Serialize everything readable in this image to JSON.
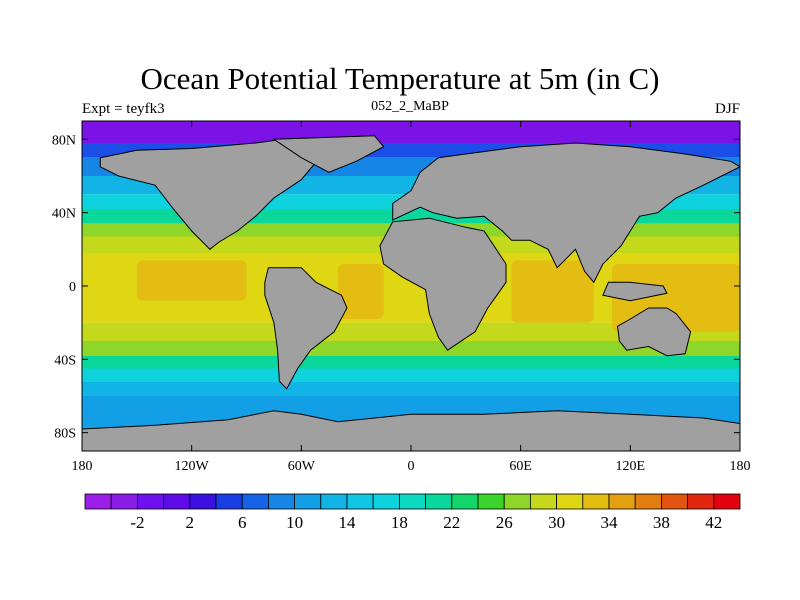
{
  "title": "Ocean Potential Temperature at 5m (in C)",
  "left_string": "Expt = teyfk3",
  "center_string": "052_2_MaBP",
  "right_string": "DJF",
  "lon_ticks": [
    {
      "lon": -180,
      "label": "180"
    },
    {
      "lon": -120,
      "label": "120W"
    },
    {
      "lon": -60,
      "label": "60W"
    },
    {
      "lon": 0,
      "label": "0"
    },
    {
      "lon": 60,
      "label": "60E"
    },
    {
      "lon": 120,
      "label": "120E"
    },
    {
      "lon": 180,
      "label": "180"
    }
  ],
  "lat_ticks": [
    {
      "lat": 80,
      "label": "80N"
    },
    {
      "lat": 40,
      "label": "40N"
    },
    {
      "lat": 0,
      "label": "0"
    },
    {
      "lat": -40,
      "label": "40S"
    },
    {
      "lat": -80,
      "label": "80S"
    }
  ],
  "map_extent": {
    "lon": [
      -180,
      180
    ],
    "lat": [
      -90,
      90
    ]
  },
  "colorbar": {
    "levels": [
      -4,
      -2,
      0,
      2,
      4,
      6,
      8,
      10,
      12,
      14,
      16,
      18,
      20,
      22,
      24,
      26,
      28,
      30,
      32,
      34,
      36,
      38,
      40,
      42
    ],
    "labels": [
      "-2",
      "2",
      "6",
      "10",
      "14",
      "18",
      "22",
      "26",
      "30",
      "34",
      "38",
      "42"
    ],
    "colors": [
      "#9d1ee8",
      "#8a1ee8",
      "#6f10ef",
      "#5e0be8",
      "#3b0fe0",
      "#1a3ee6",
      "#1763e8",
      "#1585e6",
      "#139fe6",
      "#12b4e6",
      "#11c6e3",
      "#0fd3dc",
      "#0ad9c0",
      "#0ad79c",
      "#13d66a",
      "#3ad52a",
      "#8ed629",
      "#c5d91c",
      "#dfd614",
      "#e3bd12",
      "#e4a10f",
      "#e27e0f",
      "#e2540f",
      "#e3260f",
      "#e3000f"
    ]
  },
  "land_color": "#a0a0a0",
  "ocean_bands": [
    {
      "lat_top": 90,
      "lat_bottom": 78,
      "color": "#7b12e6"
    },
    {
      "lat_top": 78,
      "lat_bottom": 70,
      "color": "#1a4ee6"
    },
    {
      "lat_top": 70,
      "lat_bottom": 60,
      "color": "#1585e6"
    },
    {
      "lat_top": 60,
      "lat_bottom": 50,
      "color": "#12b4e6"
    },
    {
      "lat_top": 50,
      "lat_bottom": 42,
      "color": "#0fd3dc"
    },
    {
      "lat_top": 42,
      "lat_bottom": 34,
      "color": "#0ad79c"
    },
    {
      "lat_top": 34,
      "lat_bottom": 27,
      "color": "#8ed629"
    },
    {
      "lat_top": 27,
      "lat_bottom": 18,
      "color": "#c5d91c"
    },
    {
      "lat_top": 18,
      "lat_bottom": -20,
      "color": "#dfd614"
    },
    {
      "lat_top": -20,
      "lat_bottom": -30,
      "color": "#c5d91c"
    },
    {
      "lat_top": -30,
      "lat_bottom": -38,
      "color": "#8ed629"
    },
    {
      "lat_top": -38,
      "lat_bottom": -45,
      "color": "#0ad79c"
    },
    {
      "lat_top": -45,
      "lat_bottom": -52,
      "color": "#0fd3dc"
    },
    {
      "lat_top": -52,
      "lat_bottom": -60,
      "color": "#12b4e6"
    },
    {
      "lat_top": -60,
      "lat_bottom": -90,
      "color": "#139fe6"
    }
  ],
  "warm_pools": [
    {
      "lon": [
        -150,
        -90
      ],
      "lat": [
        -8,
        14
      ],
      "color": "#e3bd12"
    },
    {
      "lon": [
        -40,
        -15
      ],
      "lat": [
        -18,
        12
      ],
      "color": "#e3bd12"
    },
    {
      "lon": [
        55,
        100
      ],
      "lat": [
        -20,
        14
      ],
      "color": "#e3bd12"
    },
    {
      "lon": [
        110,
        180
      ],
      "lat": [
        -25,
        12
      ],
      "color": "#e3bd12"
    }
  ],
  "land_polygons": [
    {
      "name": "north-america",
      "points": [
        [
          -170,
          70
        ],
        [
          -150,
          74
        ],
        [
          -120,
          75
        ],
        [
          -85,
          78
        ],
        [
          -70,
          80
        ],
        [
          -55,
          80
        ],
        [
          -50,
          70
        ],
        [
          -60,
          58
        ],
        [
          -75,
          48
        ],
        [
          -85,
          38
        ],
        [
          -95,
          30
        ],
        [
          -105,
          24
        ],
        [
          -110,
          20
        ],
        [
          -120,
          30
        ],
        [
          -130,
          42
        ],
        [
          -140,
          55
        ],
        [
          -160,
          60
        ],
        [
          -170,
          65
        ]
      ]
    },
    {
      "name": "greenland",
      "points": [
        [
          -75,
          80
        ],
        [
          -20,
          82
        ],
        [
          -15,
          76
        ],
        [
          -30,
          68
        ],
        [
          -45,
          62
        ],
        [
          -60,
          70
        ]
      ]
    },
    {
      "name": "south-america",
      "points": [
        [
          -78,
          10
        ],
        [
          -60,
          10
        ],
        [
          -52,
          2
        ],
        [
          -38,
          -5
        ],
        [
          -35,
          -12
        ],
        [
          -42,
          -25
        ],
        [
          -55,
          -35
        ],
        [
          -62,
          -45
        ],
        [
          -68,
          -56
        ],
        [
          -72,
          -52
        ],
        [
          -73,
          -35
        ],
        [
          -75,
          -20
        ],
        [
          -80,
          -5
        ],
        [
          -80,
          2
        ]
      ]
    },
    {
      "name": "africa",
      "points": [
        [
          -17,
          22
        ],
        [
          -10,
          35
        ],
        [
          10,
          37
        ],
        [
          30,
          32
        ],
        [
          40,
          30
        ],
        [
          52,
          12
        ],
        [
          52,
          2
        ],
        [
          42,
          -12
        ],
        [
          35,
          -25
        ],
        [
          20,
          -35
        ],
        [
          15,
          -28
        ],
        [
          10,
          -15
        ],
        [
          8,
          -2
        ],
        [
          -5,
          5
        ],
        [
          -15,
          12
        ]
      ]
    },
    {
      "name": "eurasia",
      "points": [
        [
          -10,
          36
        ],
        [
          -10,
          45
        ],
        [
          0,
          52
        ],
        [
          5,
          62
        ],
        [
          15,
          70
        ],
        [
          30,
          72
        ],
        [
          60,
          76
        ],
        [
          90,
          78
        ],
        [
          120,
          76
        ],
        [
          150,
          72
        ],
        [
          175,
          68
        ],
        [
          180,
          65
        ],
        [
          170,
          60
        ],
        [
          160,
          55
        ],
        [
          145,
          48
        ],
        [
          135,
          40
        ],
        [
          125,
          38
        ],
        [
          120,
          30
        ],
        [
          115,
          22
        ],
        [
          105,
          12
        ],
        [
          100,
          2
        ],
        [
          95,
          8
        ],
        [
          90,
          20
        ],
        [
          80,
          10
        ],
        [
          75,
          20
        ],
        [
          65,
          25
        ],
        [
          55,
          25
        ],
        [
          50,
          30
        ],
        [
          40,
          38
        ],
        [
          25,
          37
        ],
        [
          12,
          40
        ],
        [
          5,
          43
        ]
      ]
    },
    {
      "name": "australia",
      "points": [
        [
          113,
          -22
        ],
        [
          120,
          -18
        ],
        [
          130,
          -12
        ],
        [
          140,
          -12
        ],
        [
          145,
          -15
        ],
        [
          153,
          -25
        ],
        [
          150,
          -37
        ],
        [
          140,
          -38
        ],
        [
          130,
          -33
        ],
        [
          118,
          -35
        ],
        [
          114,
          -30
        ]
      ]
    },
    {
      "name": "antarctica",
      "points": [
        [
          -180,
          -90
        ],
        [
          180,
          -90
        ],
        [
          180,
          -75
        ],
        [
          160,
          -72
        ],
        [
          120,
          -70
        ],
        [
          80,
          -68
        ],
        [
          40,
          -70
        ],
        [
          0,
          -70
        ],
        [
          -40,
          -74
        ],
        [
          -60,
          -70
        ],
        [
          -75,
          -68
        ],
        [
          -100,
          -73
        ],
        [
          -140,
          -76
        ],
        [
          -180,
          -78
        ]
      ]
    },
    {
      "name": "indonesia",
      "points": [
        [
          105,
          -5
        ],
        [
          120,
          -8
        ],
        [
          130,
          -6
        ],
        [
          140,
          -4
        ],
        [
          138,
          0
        ],
        [
          120,
          2
        ],
        [
          108,
          2
        ]
      ]
    }
  ]
}
